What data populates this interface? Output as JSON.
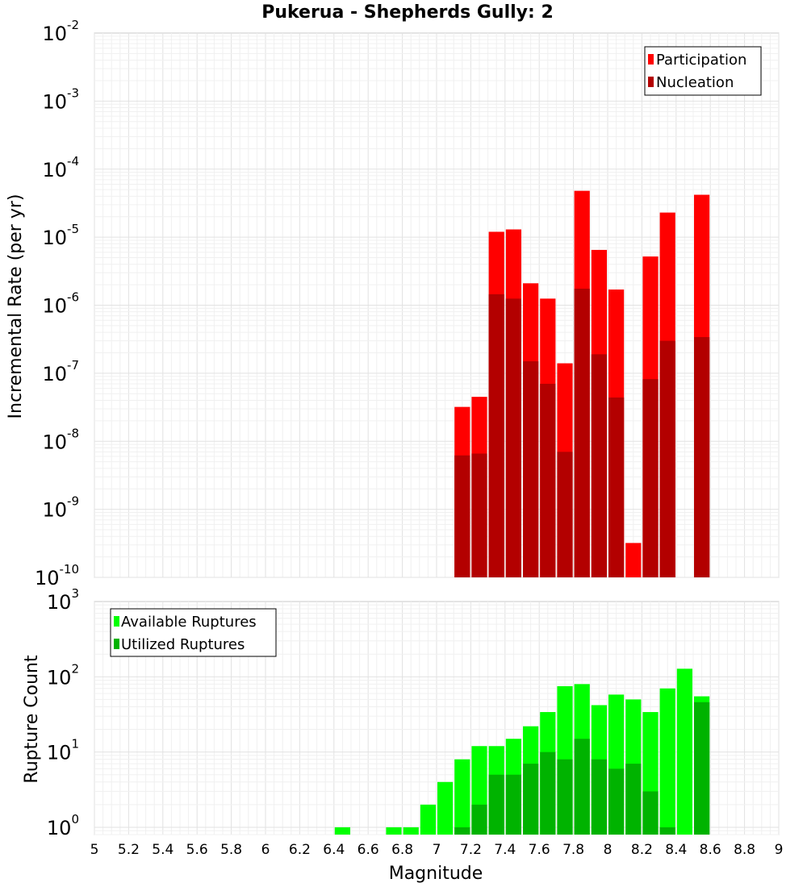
{
  "title": "Pukerua - Shepherds Gully: 2",
  "chart_data": [
    {
      "type": "bar",
      "ylabel": "Incremental Rate (per yr)",
      "y_scale": "log",
      "ylim": [
        1e-10,
        0.01
      ],
      "y_ticks": [
        {
          "base": "10",
          "exp": "-2",
          "value": 0.01
        },
        {
          "base": "10",
          "exp": "-3",
          "value": 0.001
        },
        {
          "base": "10",
          "exp": "-4",
          "value": 0.0001
        },
        {
          "base": "10",
          "exp": "-5",
          "value": 1e-05
        },
        {
          "base": "10",
          "exp": "-6",
          "value": 1e-06
        },
        {
          "base": "10",
          "exp": "-7",
          "value": 1e-07
        },
        {
          "base": "10",
          "exp": "-8",
          "value": 1e-08
        },
        {
          "base": "10",
          "exp": "-9",
          "value": 1e-09
        },
        {
          "base": "10",
          "exp": "-10",
          "value": 1e-10
        }
      ],
      "legend_position": "top-right",
      "x": [
        7.15,
        7.25,
        7.35,
        7.45,
        7.55,
        7.65,
        7.75,
        7.85,
        7.95,
        8.05,
        8.15,
        8.25,
        8.35,
        8.45,
        8.55
      ],
      "series": [
        {
          "name": "Participation",
          "color": "#ff0000",
          "values": [
            3.2e-08,
            4.5e-08,
            1.2e-05,
            1.3e-05,
            2.1e-06,
            1.25e-06,
            1.4e-07,
            4.8e-05,
            6.5e-06,
            1.7e-06,
            3.2e-10,
            5.2e-06,
            2.3e-05,
            null,
            4.2e-05
          ]
        },
        {
          "name": "Nucleation",
          "color": "#b30000",
          "values": [
            6.2e-09,
            6.6e-09,
            1.45e-06,
            1.25e-06,
            1.5e-07,
            7e-08,
            7e-09,
            1.75e-06,
            1.9e-07,
            4.4e-08,
            null,
            8.2e-08,
            3e-07,
            null,
            3.4e-07
          ]
        }
      ]
    },
    {
      "type": "bar",
      "ylabel": "Rupture Count",
      "y_scale": "log",
      "ylim": [
        0.8,
        1000
      ],
      "y_ticks": [
        {
          "base": "10",
          "exp": "3",
          "value": 1000
        },
        {
          "base": "10",
          "exp": "2",
          "value": 100
        },
        {
          "base": "10",
          "exp": "1",
          "value": 10
        },
        {
          "base": "10",
          "exp": "0",
          "value": 1
        }
      ],
      "legend_position": "top-left",
      "xlabel": "Magnitude",
      "xlim": [
        5,
        9
      ],
      "x_ticks": [
        "5",
        "5.2",
        "5.4",
        "5.6",
        "5.8",
        "6",
        "6.2",
        "6.4",
        "6.6",
        "6.8",
        "7",
        "7.2",
        "7.4",
        "7.6",
        "7.8",
        "8",
        "8.2",
        "8.4",
        "8.6",
        "8.8",
        "9"
      ],
      "x": [
        6.45,
        6.75,
        6.85,
        6.95,
        7.05,
        7.15,
        7.25,
        7.35,
        7.45,
        7.55,
        7.65,
        7.75,
        7.85,
        7.95,
        8.05,
        8.15,
        8.25,
        8.35,
        8.45,
        8.55
      ],
      "series": [
        {
          "name": "Available Ruptures",
          "color": "#00ff00",
          "values": [
            1,
            1,
            1,
            2,
            4,
            8,
            12,
            12,
            15,
            22,
            34,
            75,
            80,
            42,
            58,
            50,
            34,
            70,
            128,
            55
          ]
        },
        {
          "name": "Utilized Ruptures",
          "color": "#00b300",
          "values": [
            null,
            null,
            null,
            null,
            null,
            1,
            2,
            5,
            5,
            7,
            10,
            8,
            15,
            8,
            6,
            7,
            3,
            1,
            null,
            46
          ]
        }
      ]
    }
  ]
}
